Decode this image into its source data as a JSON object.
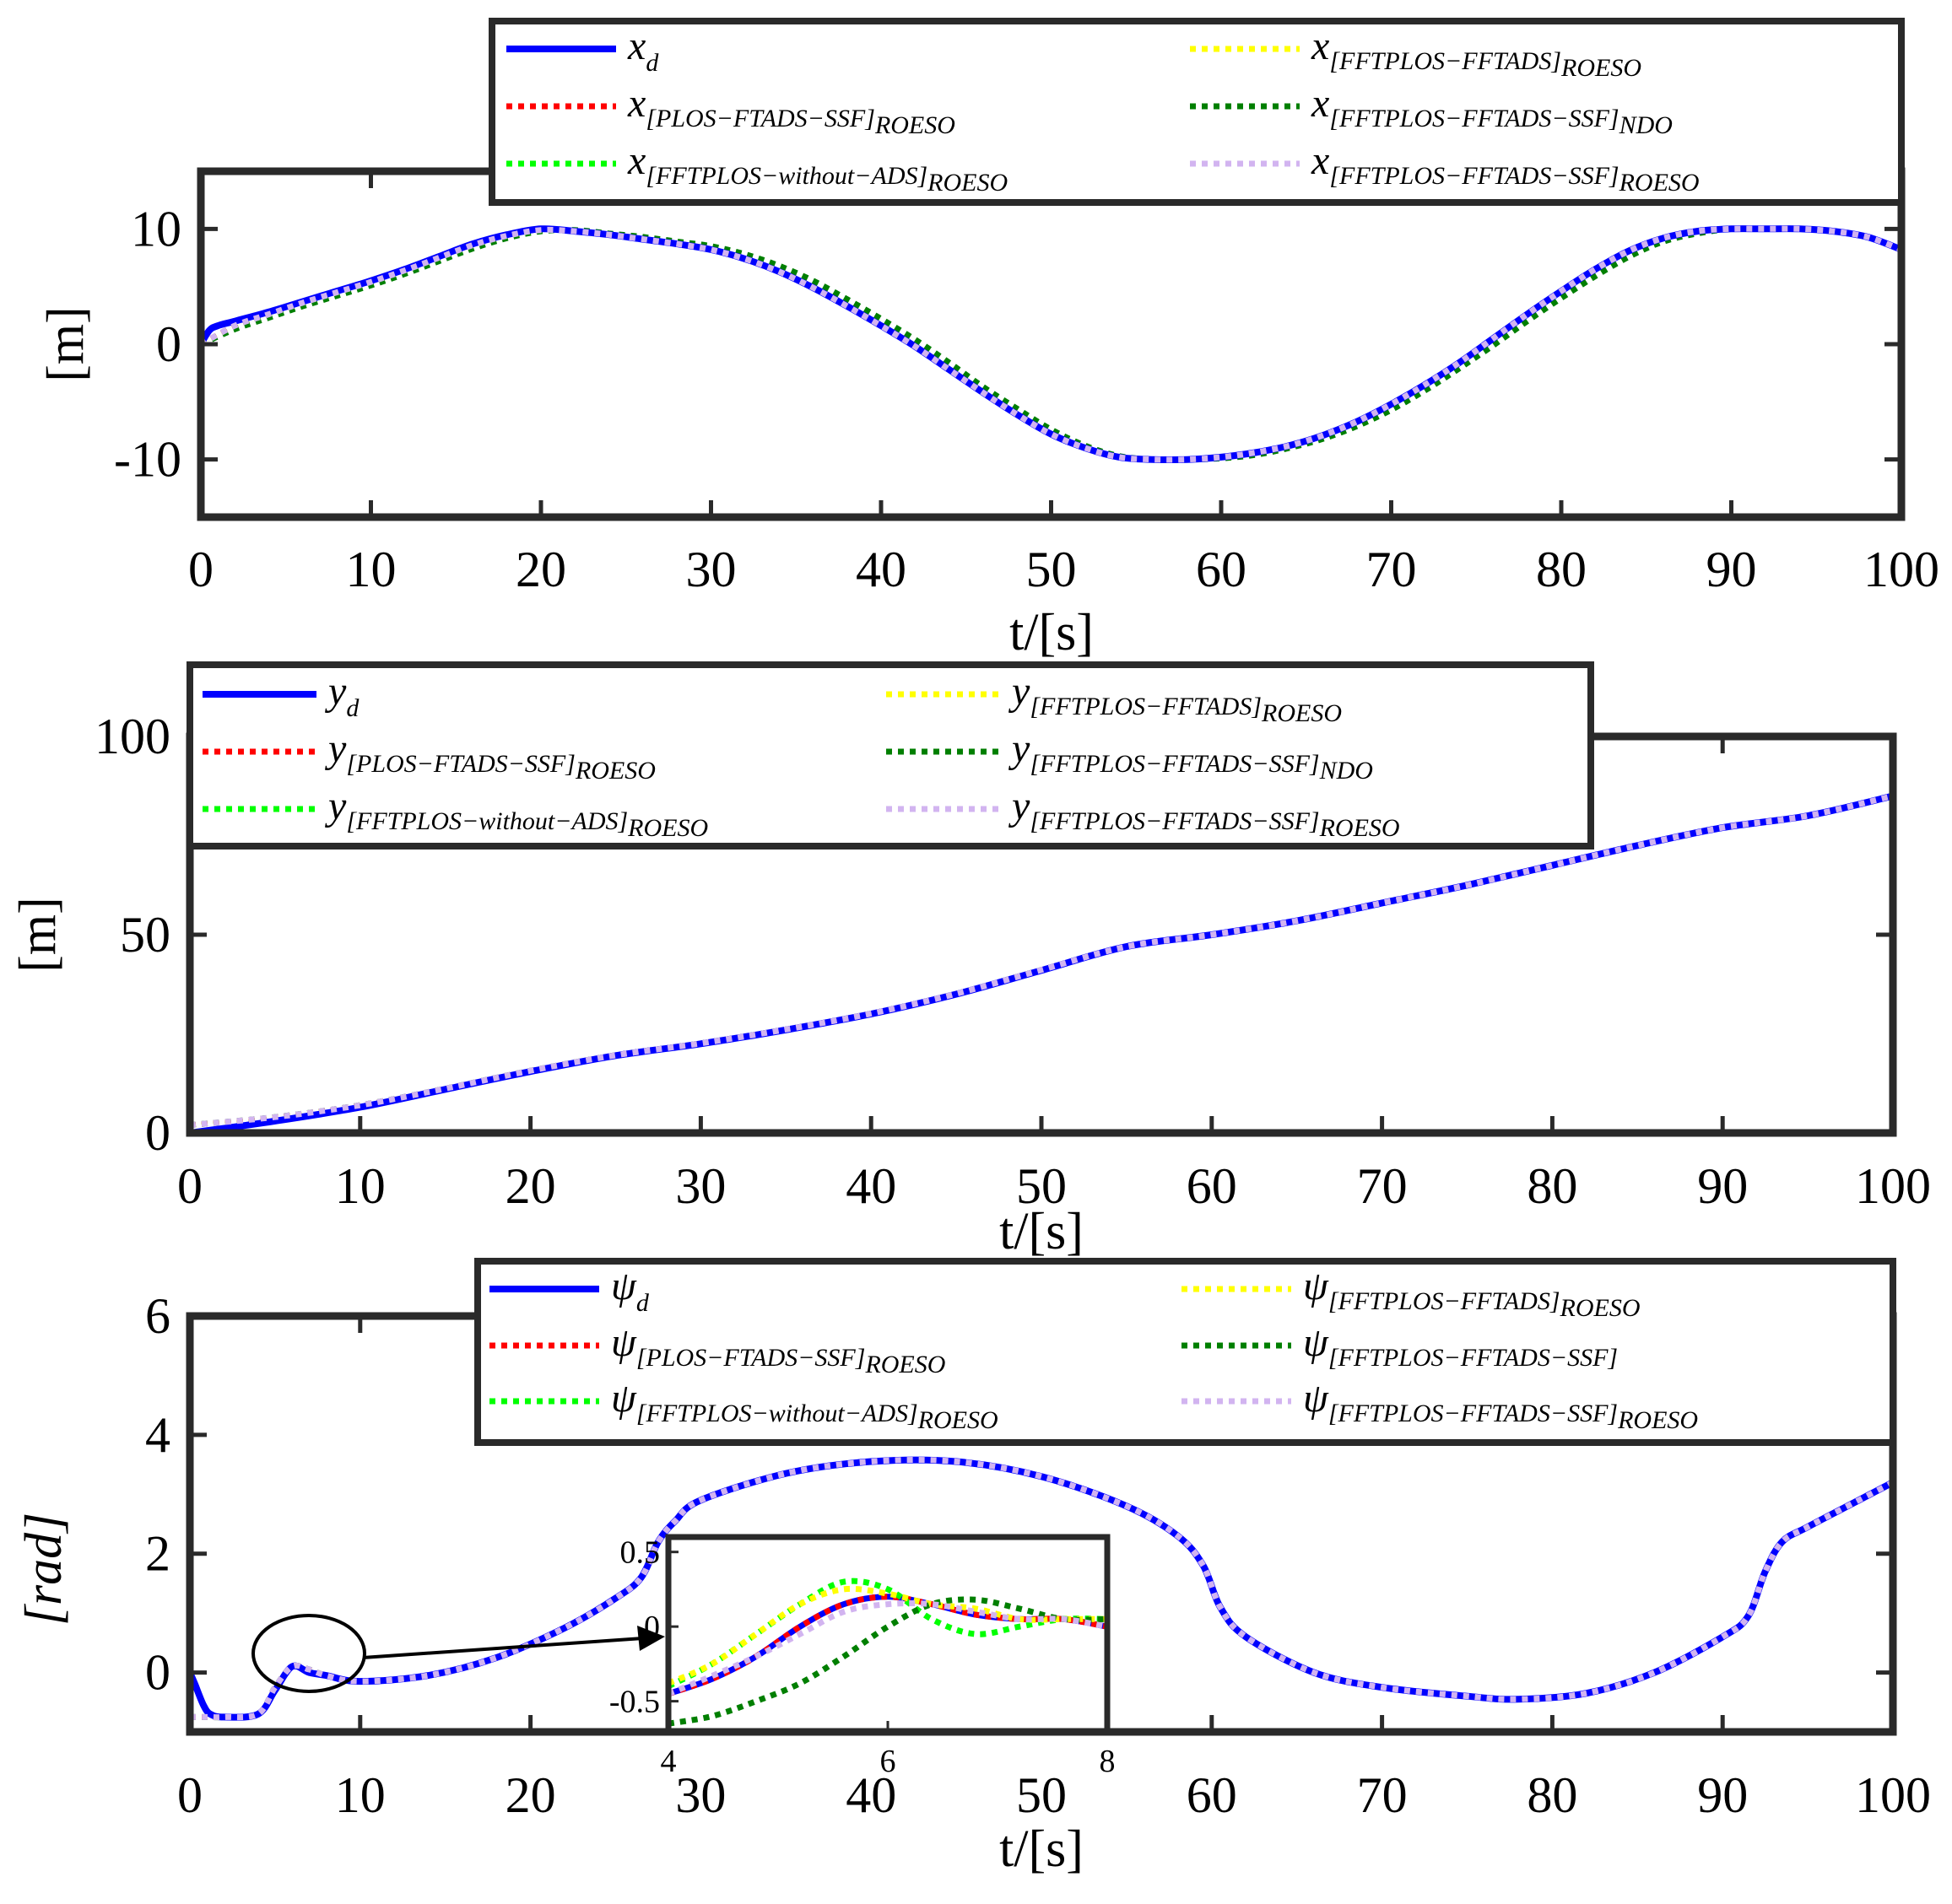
{
  "chart_data": [
    {
      "type": "line",
      "id": "x",
      "ylabel": "[m]",
      "xlabel": "t/[s]",
      "xlim": [
        0,
        100
      ],
      "ylim": [
        -15,
        15
      ],
      "xticks": [
        0,
        10,
        20,
        30,
        40,
        50,
        60,
        70,
        80,
        90,
        100
      ],
      "xtick_labels": [
        "0",
        "10",
        "20",
        "30",
        "40",
        "50",
        "60",
        "70",
        "80",
        "90",
        "100"
      ],
      "yticks": [
        -10,
        0,
        10
      ],
      "ytick_labels": [
        "-10",
        "0",
        "10"
      ],
      "legend_position": "top-right",
      "legend": [
        {
          "base": "x",
          "sub": "d",
          "bracket": "",
          "style": "solid",
          "color": "#0000ff"
        },
        {
          "base": "x",
          "sub": "",
          "bracket": "[PLOS−FTADS−SSF]",
          "bsub": "ROESO",
          "style": "dotted",
          "color": "#ff0000"
        },
        {
          "base": "x",
          "sub": "",
          "bracket": "[FFTPLOS−without−ADS]",
          "bsub": "ROESO",
          "style": "dotted",
          "color": "#00ff00"
        },
        {
          "base": "x",
          "sub": "",
          "bracket": "[FFTPLOS−FFTADS]",
          "bsub": "ROESO",
          "style": "dotted",
          "color": "#ffff00"
        },
        {
          "base": "x",
          "sub": "",
          "bracket": "[FFTPLOS−FFTADS−SSF]",
          "bsub": "NDO",
          "style": "dotted",
          "color": "#007f00"
        },
        {
          "base": "x",
          "sub": "",
          "bracket": "[FFTPLOS−FFTADS−SSF]",
          "bsub": "ROESO",
          "style": "dotted",
          "color": "#d2b4f0"
        }
      ],
      "series": [
        {
          "name": "x_d",
          "x": [
            0,
            0.5,
            1,
            2,
            4,
            6,
            8,
            10,
            12,
            14,
            16,
            18,
            20,
            22,
            24,
            26,
            28,
            30,
            32,
            34,
            36,
            38,
            40,
            42,
            44,
            46,
            48,
            50,
            52,
            54,
            56,
            58,
            60,
            62,
            64,
            66,
            68,
            70,
            72,
            74,
            76,
            78,
            80,
            82,
            84,
            86,
            88,
            90,
            92,
            94,
            96,
            98,
            100
          ],
          "y": [
            0,
            1.2,
            1.6,
            2.0,
            2.8,
            3.7,
            4.6,
            5.5,
            6.5,
            7.6,
            8.7,
            9.5,
            10,
            9.8,
            9.5,
            9.1,
            8.7,
            8.2,
            7.4,
            6.3,
            4.9,
            3.3,
            1.6,
            -0.2,
            -2.2,
            -4.2,
            -6.1,
            -7.8,
            -9.0,
            -9.8,
            -10,
            -10,
            -9.8,
            -9.4,
            -8.8,
            -7.9,
            -6.7,
            -5.2,
            -3.5,
            -1.6,
            0.5,
            2.6,
            4.6,
            6.5,
            8.1,
            9.2,
            9.8,
            10,
            10,
            10,
            9.8,
            9.3,
            8.2
          ]
        },
        {
          "name": "x_NDO",
          "x": [
            0,
            2,
            4,
            6,
            8,
            10,
            12,
            14,
            16,
            18,
            20,
            22,
            24,
            26,
            28,
            30,
            32,
            34,
            36,
            38,
            40,
            42,
            44,
            46,
            48,
            50,
            52,
            54,
            56,
            58,
            60,
            62,
            64,
            66,
            68,
            70,
            72,
            74,
            76,
            78,
            80,
            82,
            84,
            86,
            88,
            90,
            92,
            94,
            96,
            98,
            100
          ],
          "y": [
            0,
            1.3,
            2.3,
            3.3,
            4.2,
            5.1,
            6.1,
            7.2,
            8.3,
            9.2,
            9.8,
            9.9,
            9.6,
            9.3,
            8.9,
            8.5,
            7.8,
            6.8,
            5.5,
            3.9,
            2.2,
            0.4,
            -1.6,
            -3.7,
            -5.6,
            -7.4,
            -8.8,
            -9.7,
            -10,
            -10,
            -9.9,
            -9.6,
            -9.0,
            -8.2,
            -7.1,
            -5.7,
            -4.0,
            -2.1,
            -0.1,
            2.0,
            4.0,
            5.9,
            7.6,
            8.9,
            9.6,
            10,
            10,
            10,
            9.8,
            9.3,
            8.2
          ]
        },
        {
          "name": "x_ROESO",
          "x": [
            0,
            2,
            4,
            6,
            8,
            10,
            12,
            14,
            16,
            18,
            20,
            22,
            24,
            26,
            28,
            30,
            32,
            34,
            36,
            38,
            40,
            42,
            44,
            46,
            48,
            50,
            52,
            54,
            56,
            58,
            60,
            62,
            64,
            66,
            68,
            70,
            72,
            74,
            76,
            78,
            80,
            82,
            84,
            86,
            88,
            90,
            92,
            94,
            96,
            98,
            100
          ],
          "y": [
            0,
            1.6,
            2.6,
            3.6,
            4.5,
            5.4,
            6.4,
            7.5,
            8.6,
            9.4,
            9.9,
            9.8,
            9.5,
            9.1,
            8.7,
            8.2,
            7.4,
            6.3,
            4.9,
            3.3,
            1.6,
            -0.2,
            -2.2,
            -4.2,
            -6.1,
            -7.8,
            -9.0,
            -9.8,
            -10,
            -10,
            -9.8,
            -9.4,
            -8.8,
            -7.9,
            -6.7,
            -5.2,
            -3.5,
            -1.6,
            0.5,
            2.6,
            4.6,
            6.5,
            8.1,
            9.2,
            9.8,
            10,
            10,
            10,
            9.8,
            9.3,
            8.2
          ]
        }
      ]
    },
    {
      "type": "line",
      "id": "y",
      "ylabel": "[m]",
      "xlabel": "t/[s]",
      "xlim": [
        0,
        100
      ],
      "ylim": [
        0,
        100
      ],
      "xticks": [
        0,
        10,
        20,
        30,
        40,
        50,
        60,
        70,
        80,
        90,
        100
      ],
      "xtick_labels": [
        "0",
        "10",
        "20",
        "30",
        "40",
        "50",
        "60",
        "70",
        "80",
        "90",
        "100"
      ],
      "yticks": [
        0,
        50,
        100
      ],
      "ytick_labels": [
        "0",
        "50",
        "100"
      ],
      "legend_position": "top-left",
      "legend": [
        {
          "base": "y",
          "sub": "d",
          "bracket": "",
          "style": "solid",
          "color": "#0000ff"
        },
        {
          "base": "y",
          "sub": "",
          "bracket": "[PLOS−FTADS−SSF]",
          "bsub": "ROESO",
          "style": "dotted",
          "color": "#ff0000"
        },
        {
          "base": "y",
          "sub": "",
          "bracket": "[FFTPLOS−without−ADS]",
          "bsub": "ROESO",
          "style": "dotted",
          "color": "#00ff00"
        },
        {
          "base": "y",
          "sub": "",
          "bracket": "[FFTPLOS−FFTADS]",
          "bsub": "ROESO",
          "style": "dotted",
          "color": "#ffff00"
        },
        {
          "base": "y",
          "sub": "",
          "bracket": "[FFTPLOS−FFTADS−SSF]",
          "bsub": "NDO",
          "style": "dotted",
          "color": "#007f00"
        },
        {
          "base": "y",
          "sub": "",
          "bracket": "[FFTPLOS−FFTADS−SSF]",
          "bsub": "ROESO",
          "style": "dotted",
          "color": "#d2b4f0"
        }
      ],
      "series": [
        {
          "name": "y_d",
          "x": [
            0,
            5,
            10,
            15,
            20,
            25,
            30,
            35,
            40,
            45,
            50,
            55,
            60,
            65,
            70,
            75,
            80,
            85,
            90,
            95,
            100
          ],
          "y": [
            0,
            3,
            6.5,
            11,
            15.5,
            19.5,
            22.5,
            26,
            30,
            35,
            41,
            47,
            50,
            53.5,
            58,
            62.5,
            67.5,
            72.5,
            77,
            80,
            85
          ]
        },
        {
          "name": "y_ROESO",
          "x": [
            0,
            5,
            10,
            15,
            20,
            25,
            30,
            35,
            40,
            45,
            50,
            55,
            60,
            65,
            70,
            75,
            80,
            85,
            90,
            95,
            100
          ],
          "y": [
            2,
            4,
            7,
            11.2,
            15.7,
            19.6,
            22.6,
            26.1,
            30.1,
            35.1,
            41.1,
            47,
            50,
            53.5,
            58,
            62.5,
            67.5,
            72.5,
            77,
            80,
            85
          ]
        }
      ]
    },
    {
      "type": "line",
      "id": "psi",
      "ylabel": "[rad]",
      "xlabel": "t/[s]",
      "xlim": [
        0,
        100
      ],
      "ylim": [
        -1,
        6
      ],
      "xticks": [
        0,
        10,
        20,
        30,
        40,
        50,
        60,
        70,
        80,
        90,
        100
      ],
      "xtick_labels": [
        "0",
        "10",
        "20",
        "30",
        "40",
        "50",
        "60",
        "70",
        "80",
        "90",
        "100"
      ],
      "yticks": [
        0,
        2,
        4,
        6
      ],
      "ytick_labels": [
        "0",
        "2",
        "4",
        "6"
      ],
      "legend_position": "top-right",
      "legend": [
        {
          "base": "ψ",
          "sub": "d",
          "bracket": "",
          "style": "solid",
          "color": "#0000ff"
        },
        {
          "base": "ψ",
          "sub": "",
          "bracket": "[PLOS−FTADS−SSF]",
          "bsub": "ROESO",
          "style": "dotted",
          "color": "#ff0000"
        },
        {
          "base": "ψ",
          "sub": "",
          "bracket": "[FFTPLOS−without−ADS]",
          "bsub": "ROESO",
          "style": "dotted",
          "color": "#00ff00"
        },
        {
          "base": "ψ",
          "sub": "",
          "bracket": "[FFTPLOS−FFTADS]",
          "bsub": "ROESO",
          "style": "dotted",
          "color": "#ffff00"
        },
        {
          "base": "ψ",
          "sub": "",
          "bracket": "[FFTPLOS−FFTADS−SSF]",
          "bsub": "",
          "style": "dotted",
          "color": "#007f00"
        },
        {
          "base": "ψ",
          "sub": "",
          "bracket": "[FFTPLOS−FFTADS−SSF]",
          "bsub": "ROESO",
          "style": "dotted",
          "color": "#d2b4f0"
        }
      ],
      "series": [
        {
          "name": "psi_d",
          "x": [
            0,
            0.3,
            0.8,
            1.2,
            2,
            4,
            5,
            6,
            7,
            8,
            10,
            14,
            18,
            22,
            25,
            26.5,
            27.5,
            28.5,
            30,
            35,
            40,
            45,
            50,
            55,
            58,
            59.5,
            60.5,
            62,
            66,
            70,
            75,
            78,
            82,
            86,
            90,
            91.5,
            92.5,
            93.5,
            95,
            98,
            100
          ],
          "y": [
            0,
            -0.2,
            -0.55,
            -0.7,
            -0.75,
            -0.7,
            -0.3,
            0.1,
            0.0,
            -0.05,
            -0.15,
            -0.05,
            0.25,
            0.75,
            1.25,
            1.6,
            2.2,
            2.55,
            2.9,
            3.35,
            3.55,
            3.55,
            3.3,
            2.8,
            2.3,
            1.8,
            1.1,
            0.6,
            0.0,
            -0.25,
            -0.4,
            -0.45,
            -0.35,
            0.0,
            0.6,
            0.95,
            1.7,
            2.2,
            2.45,
            2.9,
            3.2
          ]
        },
        {
          "name": "psi_ROESO",
          "x": [
            0,
            0.3,
            0.8,
            1.2,
            2,
            4,
            5,
            6,
            7,
            8,
            10,
            14,
            18,
            22,
            25,
            26.5,
            27.5,
            28.5,
            30,
            35,
            40,
            45,
            50,
            55,
            58,
            59.5,
            60.5,
            62,
            66,
            70,
            75,
            78,
            82,
            86,
            90,
            91.5,
            92.5,
            93.5,
            95,
            98,
            100
          ],
          "y": [
            -0.75,
            -0.75,
            -0.75,
            -0.75,
            -0.75,
            -0.7,
            -0.25,
            0.1,
            0.05,
            -0.05,
            -0.15,
            -0.05,
            0.25,
            0.75,
            1.25,
            1.6,
            2.2,
            2.55,
            2.9,
            3.35,
            3.55,
            3.55,
            3.3,
            2.8,
            2.3,
            1.8,
            1.1,
            0.6,
            0.0,
            -0.25,
            -0.4,
            -0.45,
            -0.35,
            0.0,
            0.6,
            0.95,
            1.7,
            2.2,
            2.45,
            2.9,
            3.2
          ]
        }
      ],
      "inset": {
        "xlim": [
          4,
          8
        ],
        "ylim": [
          -0.7,
          0.6
        ],
        "xticks": [
          4,
          6,
          8
        ],
        "xtick_labels": [
          "4",
          "6",
          "8"
        ],
        "yticks": [
          -0.5,
          0,
          0.5
        ],
        "ytick_labels": [
          "-0.5",
          "0",
          "0.5"
        ],
        "series": [
          {
            "name": "blue",
            "color": "#0000ff",
            "style": "solid",
            "x": [
              4,
              4.4,
              4.8,
              5.2,
              5.6,
              6.0,
              6.4,
              6.8,
              7.2,
              7.6,
              8
            ],
            "y": [
              -0.45,
              -0.35,
              -0.2,
              0.0,
              0.15,
              0.2,
              0.15,
              0.08,
              0.05,
              0.05,
              0.0
            ]
          },
          {
            "name": "red",
            "color": "#ff0000",
            "style": "dotted",
            "x": [
              4,
              4.4,
              4.8,
              5.2,
              5.6,
              6.0,
              6.4,
              6.8,
              7.2,
              7.6,
              8
            ],
            "y": [
              -0.45,
              -0.35,
              -0.2,
              0.0,
              0.15,
              0.2,
              0.15,
              0.08,
              0.05,
              0.05,
              0.0
            ]
          },
          {
            "name": "lime",
            "color": "#00ff00",
            "style": "dotted",
            "x": [
              4,
              4.4,
              4.8,
              5.2,
              5.6,
              6.0,
              6.4,
              6.8,
              7.2,
              7.6,
              8
            ],
            "y": [
              -0.4,
              -0.25,
              -0.05,
              0.15,
              0.3,
              0.25,
              0.05,
              -0.05,
              0.0,
              0.05,
              0.05
            ]
          },
          {
            "name": "yellow",
            "color": "#ffff00",
            "style": "dotted",
            "x": [
              4,
              4.4,
              4.8,
              5.2,
              5.6,
              6.0,
              6.4,
              6.8,
              7.2,
              7.6,
              8
            ],
            "y": [
              -0.38,
              -0.25,
              -0.05,
              0.15,
              0.25,
              0.22,
              0.15,
              0.12,
              0.05,
              0.05,
              0.05
            ]
          },
          {
            "name": "darkgreen",
            "color": "#007f00",
            "style": "dotted",
            "x": [
              4,
              4.4,
              4.8,
              5.2,
              5.6,
              6.0,
              6.4,
              6.8,
              7.2,
              7.6,
              8
            ],
            "y": [
              -0.65,
              -0.6,
              -0.5,
              -0.38,
              -0.2,
              0.0,
              0.15,
              0.18,
              0.12,
              0.05,
              0.05
            ]
          },
          {
            "name": "lavender",
            "color": "#d2b4f0",
            "style": "dotted",
            "x": [
              4,
              4.4,
              4.8,
              5.2,
              5.6,
              6.0,
              6.4,
              6.8,
              7.2,
              7.6,
              8
            ],
            "y": [
              -0.45,
              -0.33,
              -0.2,
              -0.05,
              0.1,
              0.15,
              0.15,
              0.1,
              0.05,
              0.05,
              0.0
            ]
          }
        ]
      }
    }
  ]
}
